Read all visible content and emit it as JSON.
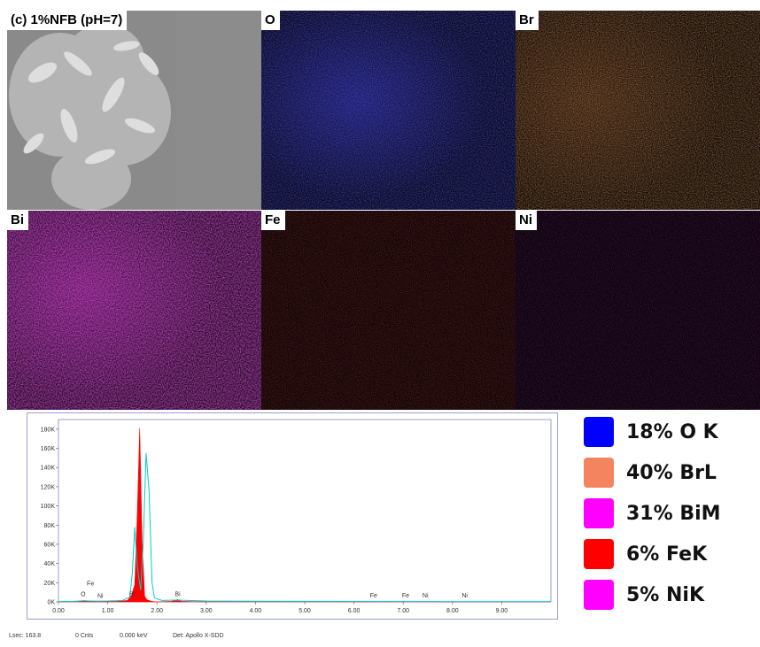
{
  "panels": [
    {
      "label": "(c) 1%NFB (pH=7)",
      "kind": "sem",
      "color": "#c8c8c8"
    },
    {
      "label": "O",
      "kind": "map",
      "color": "#2a2ad8"
    },
    {
      "label": "Br",
      "kind": "map",
      "color": "#d77a3c"
    },
    {
      "label": "Bi",
      "kind": "map",
      "color": "#d020d0"
    },
    {
      "label": "Fe",
      "kind": "map",
      "color": "#c81e1e"
    },
    {
      "label": "Ni",
      "kind": "map",
      "color": "#b41ab4"
    }
  ],
  "legend": [
    {
      "label": "18% O K",
      "color": "#0000ff"
    },
    {
      "label": "40% BrL",
      "color": "#f4845f"
    },
    {
      "label": "31% BiM",
      "color": "#ff00ff"
    },
    {
      "label": "6% FeK",
      "color": "#ff0000"
    },
    {
      "label": "5% NiK",
      "color": "#ff00ff"
    }
  ],
  "status_bar": {
    "lsec": "Lsec: 163.8",
    "cnts": "0 Cnts",
    "kev": "0.000 keV",
    "det": "Det: Apollo X-SDD"
  },
  "chart_data": {
    "type": "line",
    "xlabel": "",
    "ylabel": "",
    "xlim": [
      0,
      10.0
    ],
    "ylim": [
      0,
      190000
    ],
    "x_ticks": [
      "0.00",
      "1.00",
      "2.00",
      "3.00",
      "4.00",
      "5.00",
      "6.00",
      "7.00",
      "8.00",
      "9.00"
    ],
    "y_ticks": [
      "0K",
      "20K",
      "40K",
      "60K",
      "80K",
      "100K",
      "120K",
      "140K",
      "160K",
      "180K"
    ],
    "series": [
      {
        "color": "#ff0000",
        "fill": true,
        "x": [
          0.0,
          0.4,
          0.52,
          0.6,
          0.8,
          1.2,
          1.4,
          1.48,
          1.55,
          1.6,
          1.65,
          1.7,
          1.75,
          1.8,
          1.9,
          2.0,
          2.3,
          2.42,
          2.5,
          3.0,
          10.0
        ],
        "y": [
          0,
          0,
          1500,
          500,
          0,
          500,
          1500,
          6000,
          18000,
          90000,
          181000,
          60000,
          6000,
          2000,
          500,
          0,
          500,
          2500,
          500,
          0,
          0
        ]
      },
      {
        "color": "#00cccc",
        "fill": false,
        "x": [
          0.0,
          0.3,
          0.52,
          0.7,
          1.0,
          1.3,
          1.45,
          1.5,
          1.55,
          1.6,
          1.67,
          1.72,
          1.78,
          1.84,
          1.9,
          1.95,
          2.1,
          2.4,
          3.0,
          4.0,
          6.0,
          8.0,
          9.5,
          10.0
        ],
        "y": [
          300,
          600,
          1200,
          800,
          900,
          1500,
          5000,
          30000,
          78000,
          36000,
          12000,
          60000,
          155000,
          115000,
          20000,
          4000,
          1500,
          1800,
          900,
          700,
          500,
          400,
          300,
          300
        ]
      }
    ],
    "peak_labels": [
      {
        "text": "Fe",
        "x": 0.65,
        "y": 16000
      },
      {
        "text": "O",
        "x": 0.5,
        "y": 5000
      },
      {
        "text": "Ni",
        "x": 0.85,
        "y": 3000
      },
      {
        "text": "Br",
        "x": 1.5,
        "y": 5000
      },
      {
        "text": "Bi",
        "x": 2.42,
        "y": 5000
      },
      {
        "text": "Fe",
        "x": 6.4,
        "y": 3500
      },
      {
        "text": "Fe",
        "x": 7.05,
        "y": 3500
      },
      {
        "text": "Ni",
        "x": 7.45,
        "y": 3500
      },
      {
        "text": "Ni",
        "x": 8.25,
        "y": 3500
      }
    ]
  }
}
